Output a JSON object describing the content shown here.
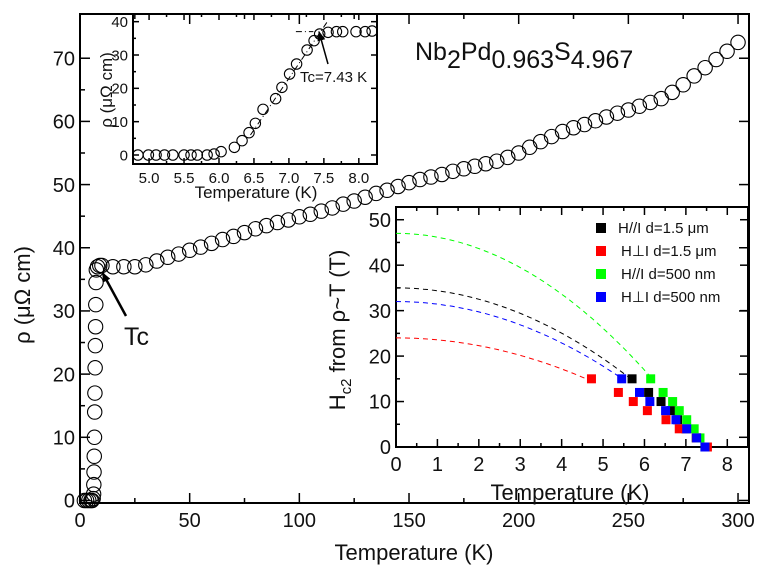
{
  "chart_data": [
    {
      "id": "main",
      "type": "scatter",
      "title": "Nb2Pd0.963S4.967",
      "title_parts": {
        "base1": "Nb",
        "sub1": "2",
        "base2": "Pd",
        "sub2": "0.963",
        "base3": "S",
        "sub3": "4.967"
      },
      "xlabel": "Temperature (K)",
      "ylabel": "ρ (μΩ cm)",
      "xlim": [
        0,
        305
      ],
      "ylim": [
        -0.4,
        77
      ],
      "xticks": [
        0,
        50,
        100,
        150,
        200,
        250,
        300
      ],
      "yticks": [
        0,
        10,
        20,
        30,
        40,
        50,
        60,
        70
      ],
      "grid": false,
      "marker": "open-circle",
      "annotation": {
        "text": "Tc",
        "points_to": [
          7.5,
          37
        ]
      },
      "points": [
        [
          2,
          0
        ],
        [
          3,
          0
        ],
        [
          4,
          0
        ],
        [
          5,
          0
        ],
        [
          5.5,
          0
        ],
        [
          6,
          0.3
        ],
        [
          6.2,
          1
        ],
        [
          6.3,
          2.5
        ],
        [
          6.4,
          4.5
        ],
        [
          6.5,
          7
        ],
        [
          6.6,
          10
        ],
        [
          6.7,
          14
        ],
        [
          6.8,
          17
        ],
        [
          6.9,
          21
        ],
        [
          7,
          24.5
        ],
        [
          7.1,
          27.5
        ],
        [
          7.2,
          31
        ],
        [
          7.3,
          34.5
        ],
        [
          7.45,
          36.5
        ],
        [
          8,
          37
        ],
        [
          9,
          37.2
        ],
        [
          10,
          37.2
        ],
        [
          15,
          37.0
        ],
        [
          20,
          37.0
        ],
        [
          25,
          37.0
        ],
        [
          30,
          37.3
        ],
        [
          35,
          37.9
        ],
        [
          40,
          38.5
        ],
        [
          45,
          39.0
        ],
        [
          50,
          39.6
        ],
        [
          55,
          40.1
        ],
        [
          60,
          40.7
        ],
        [
          65,
          41.3
        ],
        [
          70,
          41.8
        ],
        [
          75,
          42.4
        ],
        [
          80,
          43.0
        ],
        [
          85,
          43.5
        ],
        [
          90,
          44.0
        ],
        [
          95,
          44.4
        ],
        [
          100,
          44.9
        ],
        [
          105,
          45.3
        ],
        [
          110,
          45.8
        ],
        [
          115,
          46.3
        ],
        [
          120,
          46.9
        ],
        [
          125,
          47.4
        ],
        [
          130,
          48.0
        ],
        [
          135,
          48.6
        ],
        [
          140,
          49.1
        ],
        [
          145,
          49.7
        ],
        [
          150,
          50.3
        ],
        [
          155,
          50.8
        ],
        [
          160,
          51.2
        ],
        [
          165,
          51.6
        ],
        [
          170,
          52.1
        ],
        [
          175,
          52.5
        ],
        [
          180,
          52.9
        ],
        [
          185,
          53.3
        ],
        [
          190,
          53.7
        ],
        [
          195,
          54.3
        ],
        [
          200,
          55.0
        ],
        [
          205,
          55.9
        ],
        [
          210,
          56.8
        ],
        [
          215,
          57.6
        ],
        [
          220,
          58.4
        ],
        [
          225,
          59.0
        ],
        [
          230,
          59.5
        ],
        [
          235,
          60.1
        ],
        [
          240,
          60.7
        ],
        [
          245,
          61.3
        ],
        [
          250,
          61.8
        ],
        [
          255,
          62.4
        ],
        [
          260,
          63.0
        ],
        [
          265,
          63.6
        ],
        [
          270,
          64.6
        ],
        [
          275,
          65.8
        ],
        [
          280,
          67.2
        ],
        [
          285,
          68.5
        ],
        [
          290,
          69.8
        ],
        [
          295,
          71.1
        ],
        [
          300,
          72.5
        ]
      ]
    },
    {
      "id": "inset-transition",
      "type": "scatter",
      "xlabel": "Temperature (K)",
      "ylabel": "ρ (μΩ cm)",
      "xlim": [
        4.77,
        8.26
      ],
      "ylim": [
        -2.7,
        42.3
      ],
      "xticks": [
        "5.0",
        "5.5",
        "6.0",
        "6.5",
        "7.0",
        "7.5",
        "8.0"
      ],
      "yticks": [
        0,
        10,
        20,
        30,
        40
      ],
      "grid": false,
      "marker": "open-circle",
      "annotation": {
        "text": "Tc=7.43 K",
        "points_to": [
          7.43,
          37
        ]
      },
      "fit_lines": [
        [
          [
            6.45,
            6
          ],
          [
            7.55,
            40
          ]
        ],
        [
          [
            7.1,
            37
          ],
          [
            7.35,
            37
          ]
        ]
      ],
      "points": [
        [
          4.84,
          0
        ],
        [
          4.99,
          0
        ],
        [
          5.1,
          0
        ],
        [
          5.22,
          0
        ],
        [
          5.34,
          0
        ],
        [
          5.5,
          0
        ],
        [
          5.6,
          0
        ],
        [
          5.69,
          0
        ],
        [
          5.83,
          0
        ],
        [
          5.93,
          0.3
        ],
        [
          6.03,
          1
        ],
        [
          6.22,
          2.3
        ],
        [
          6.33,
          4.3
        ],
        [
          6.43,
          6.7
        ],
        [
          6.52,
          9.5
        ],
        [
          6.63,
          13.7
        ],
        [
          6.81,
          16.9
        ],
        [
          6.9,
          20.3
        ],
        [
          7.01,
          24.3
        ],
        [
          7.11,
          27.3
        ],
        [
          7.26,
          31.5
        ],
        [
          7.36,
          34.3
        ],
        [
          7.44,
          36.3
        ],
        [
          7.56,
          36.8
        ],
        [
          7.68,
          37
        ],
        [
          7.77,
          37
        ],
        [
          7.96,
          37
        ],
        [
          8.09,
          37
        ],
        [
          8.19,
          37.2
        ]
      ]
    },
    {
      "id": "inset-hc2",
      "type": "scatter",
      "xlabel": "Temperature (K)",
      "ylabel": "Hc2 from ρ~T (T)",
      "ylabel_parts": {
        "H": "H",
        "sub": "c2",
        "rest": " from ρ~T (T)"
      },
      "xlim": [
        0,
        8.5
      ],
      "ylim": [
        0,
        52.8
      ],
      "xticks": [
        0,
        1,
        2,
        3,
        4,
        5,
        6,
        7,
        8
      ],
      "yticks": [
        0,
        10,
        20,
        30,
        40,
        50
      ],
      "grid": false,
      "legend": "top-right",
      "marker": "filled-square",
      "series": [
        {
          "name": "H//I d=1.5 μm",
          "color": "#000000",
          "hc2_0": 35,
          "tc": 7.5,
          "points": [
            [
              5.7,
              15
            ],
            [
              6.1,
              12
            ],
            [
              6.4,
              10
            ],
            [
              6.65,
              8
            ],
            [
              6.8,
              6
            ],
            [
              7.0,
              4
            ],
            [
              7.25,
              2
            ],
            [
              7.5,
              0
            ]
          ]
        },
        {
          "name": "H⊥I d=1.5 μm",
          "color": "#ff0000",
          "hc2_0": 24,
          "tc": 7.5,
          "points": [
            [
              4.72,
              15
            ],
            [
              5.37,
              12
            ],
            [
              5.73,
              10
            ],
            [
              6.07,
              8
            ],
            [
              6.52,
              6
            ],
            [
              6.84,
              4
            ],
            [
              7.26,
              2
            ],
            [
              7.52,
              0
            ]
          ]
        },
        {
          "name": "H//I d=500 nm",
          "color": "#00ff00",
          "hc2_0": 47,
          "tc": 7.5,
          "points": [
            [
              6.15,
              15
            ],
            [
              6.45,
              12
            ],
            [
              6.68,
              10
            ],
            [
              6.84,
              8
            ],
            [
              7.02,
              6
            ],
            [
              7.2,
              4
            ],
            [
              7.34,
              2
            ],
            [
              7.46,
              0
            ]
          ]
        },
        {
          "name": "H⊥I d=500 nm",
          "color": "#0000ff",
          "hc2_0": 32,
          "tc": 7.5,
          "points": [
            [
              5.45,
              15
            ],
            [
              5.88,
              12
            ],
            [
              6.13,
              10
            ],
            [
              6.51,
              8
            ],
            [
              6.76,
              6
            ],
            [
              7.02,
              4
            ],
            [
              7.26,
              2
            ],
            [
              7.46,
              0
            ]
          ]
        }
      ]
    }
  ]
}
